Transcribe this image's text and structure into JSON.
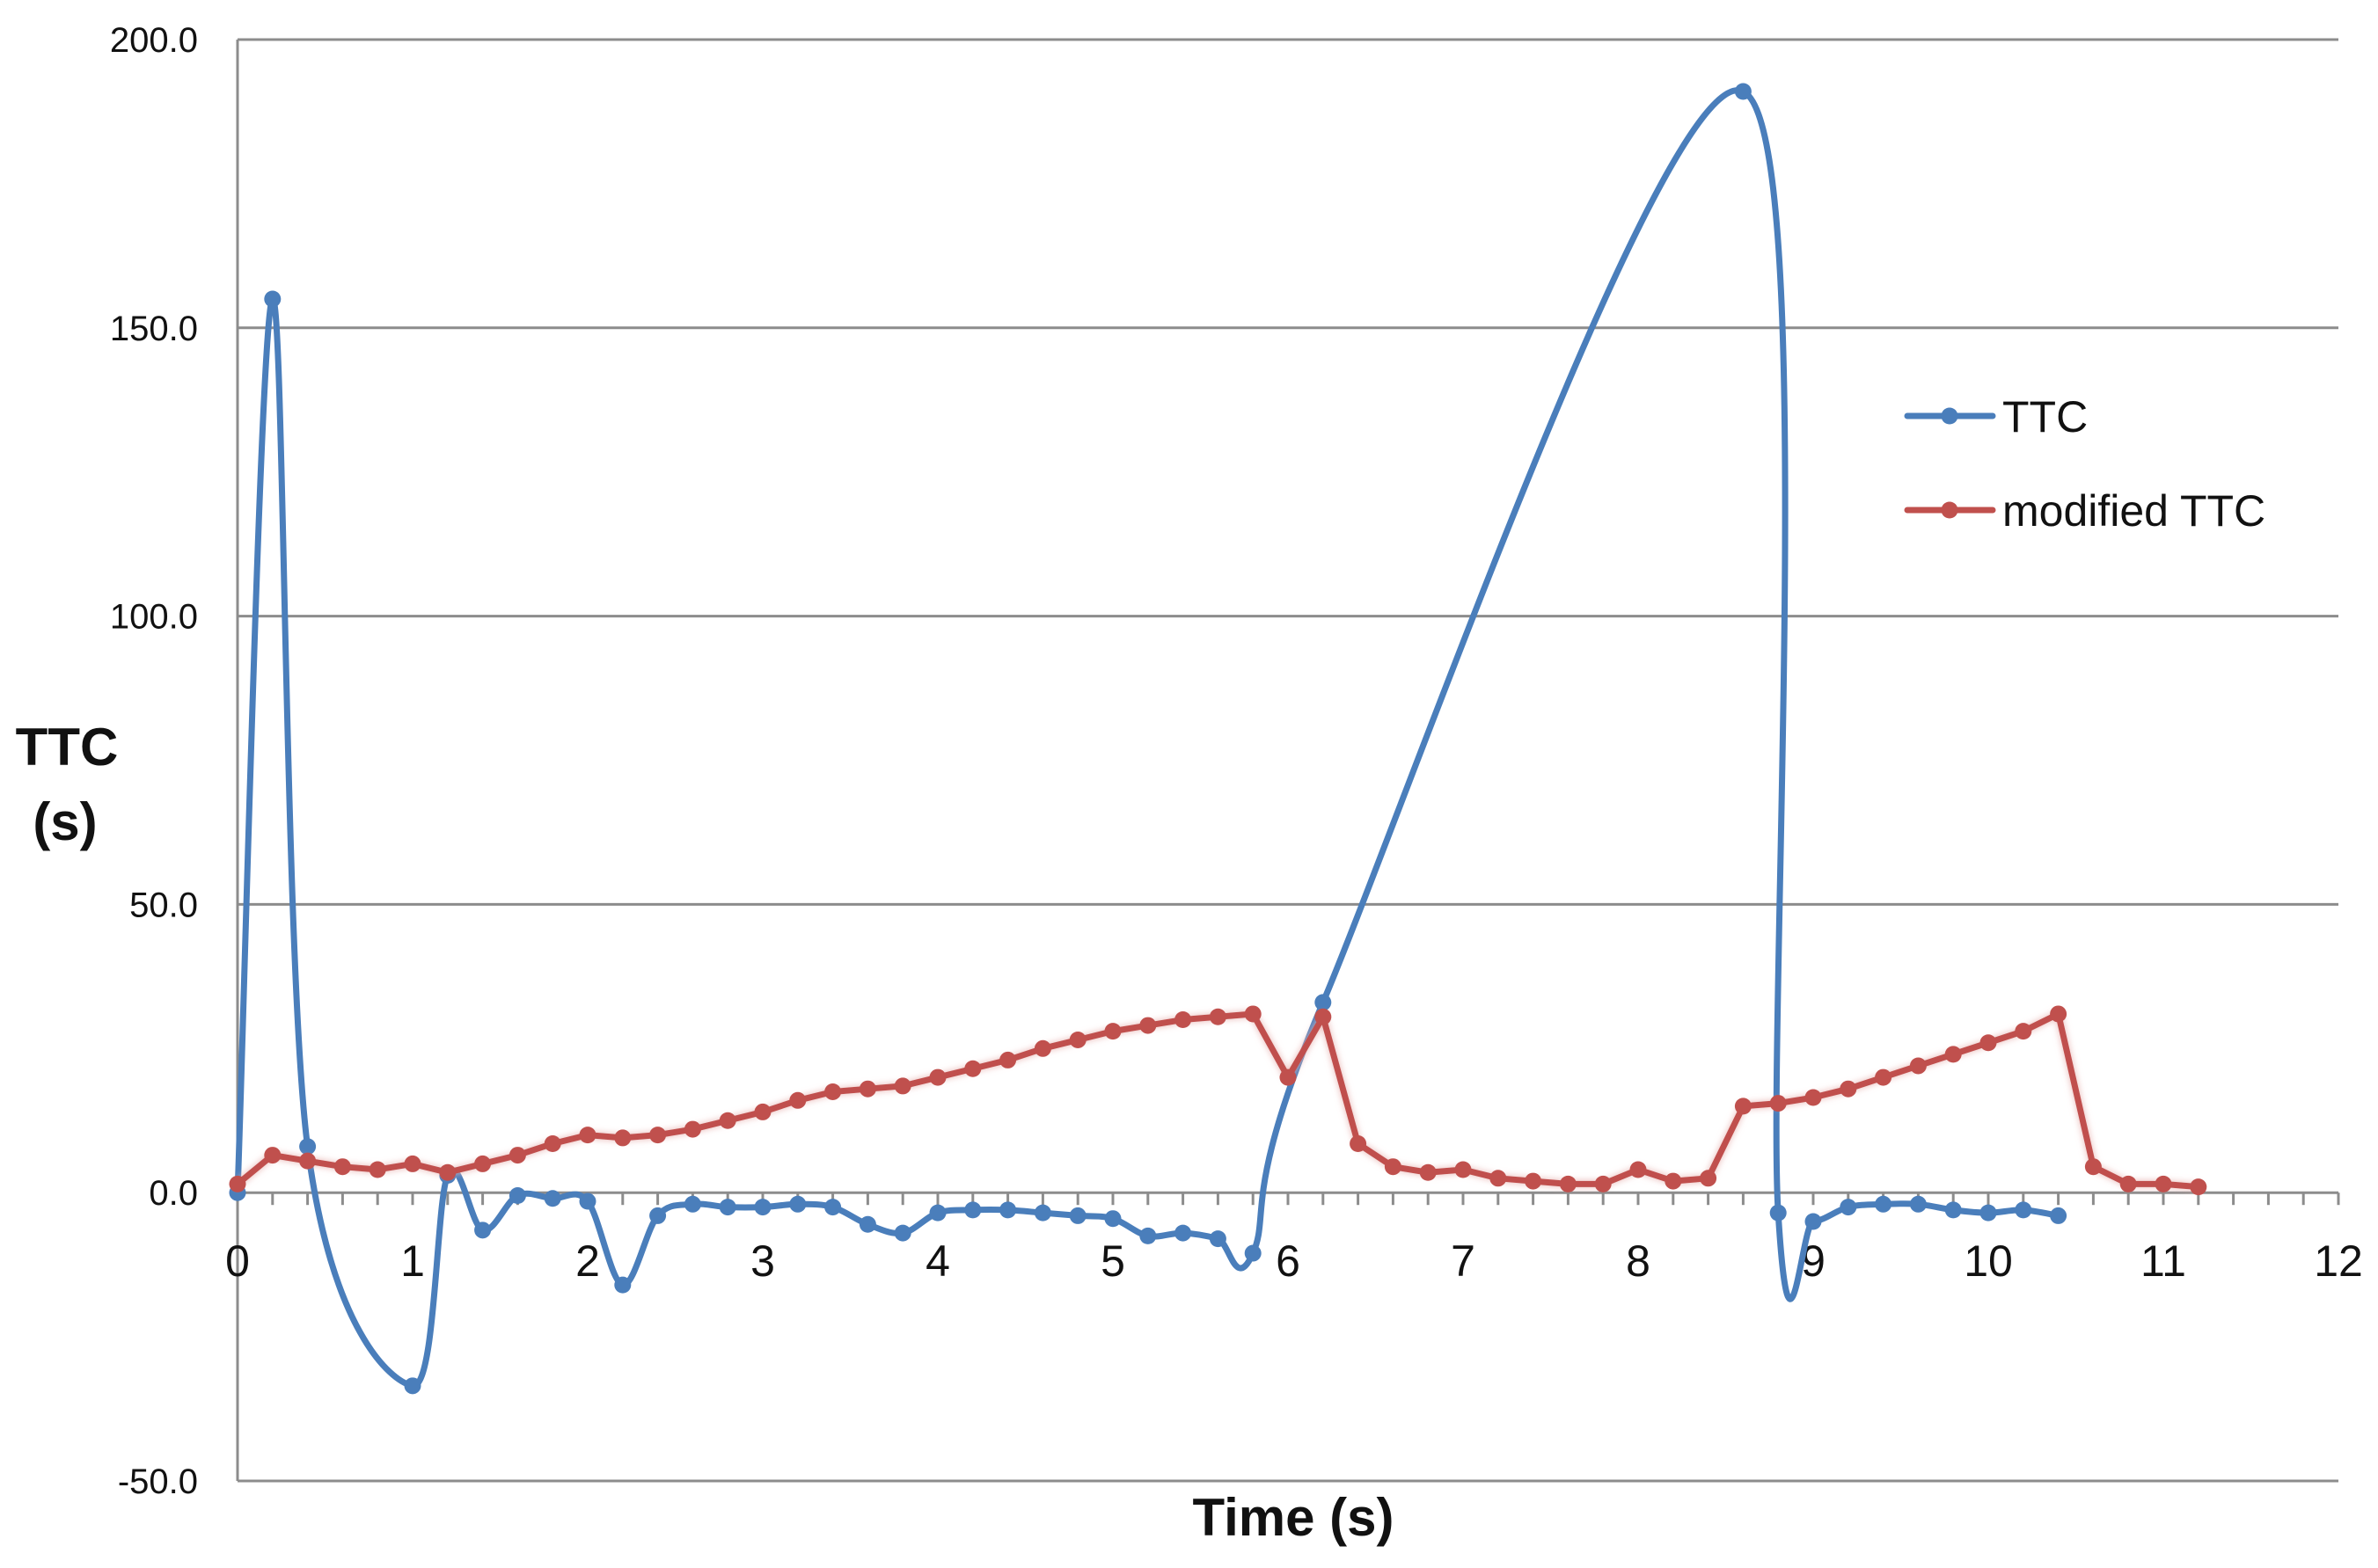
{
  "chart_data": {
    "type": "line",
    "title": "",
    "xlabel": "Time (s)",
    "ylabel": [
      "TTC",
      "(s)"
    ],
    "xlim": [
      0,
      12
    ],
    "ylim": [
      -50,
      200
    ],
    "x_ticks": [
      "0",
      "1",
      "2",
      "3",
      "4",
      "5",
      "6",
      "7",
      "8",
      "9",
      "10",
      "11",
      "12"
    ],
    "y_ticks": [
      "-50.0",
      "0.0",
      "50.0",
      "100.0",
      "150.0",
      "200.0"
    ],
    "grid": "horizontal",
    "legend_position": "right",
    "series": [
      {
        "name": "TTC",
        "color": "#4a7ebb",
        "smooth": true,
        "x": [
          0,
          0.2,
          0.4,
          1.0,
          1.2,
          1.4,
          1.6,
          1.8,
          2.0,
          2.2,
          2.4,
          2.6,
          2.8,
          3.0,
          3.2,
          3.4,
          3.6,
          3.8,
          4.0,
          4.2,
          4.4,
          4.6,
          4.8,
          5.0,
          5.2,
          5.4,
          5.6,
          5.8,
          6.2,
          8.6,
          8.8,
          9.0,
          9.2,
          9.4,
          9.6,
          9.8,
          10.0,
          10.2,
          10.4
        ],
        "y": [
          0,
          155,
          8,
          -33.5,
          3,
          -6.5,
          -0.5,
          -1,
          -1.5,
          -16,
          -4,
          -2,
          -2.5,
          -2.5,
          -2,
          -2.5,
          -5.5,
          -7,
          -3.5,
          -3,
          -3,
          -3.5,
          -4,
          -4.5,
          -7.5,
          -7,
          -8,
          -10.5,
          33,
          191,
          -3.5,
          -5,
          -2.5,
          -2,
          -2,
          -3,
          -3.5,
          -3,
          -4
        ]
      },
      {
        "name": "modified TTC",
        "color": "#c0504d",
        "smooth": false,
        "x": [
          0,
          0.2,
          0.4,
          0.6,
          0.8,
          1.0,
          1.2,
          1.4,
          1.6,
          1.8,
          2.0,
          2.2,
          2.4,
          2.6,
          2.8,
          3.0,
          3.2,
          3.4,
          3.6,
          3.8,
          4.0,
          4.2,
          4.4,
          4.6,
          4.8,
          5.0,
          5.2,
          5.4,
          5.6,
          5.8,
          6.0,
          6.2,
          6.4,
          6.6,
          6.8,
          7.0,
          7.2,
          7.4,
          7.6,
          7.8,
          8.0,
          8.2,
          8.4,
          8.6,
          8.8,
          9.0,
          9.2,
          9.4,
          9.6,
          9.8,
          10.0,
          10.2,
          10.4,
          10.6,
          10.8,
          11.0,
          11.2
        ],
        "y": [
          1.5,
          6.5,
          5.5,
          4.5,
          4,
          5,
          3.5,
          5,
          6.5,
          8.5,
          10,
          9.5,
          10,
          11,
          12.5,
          14,
          16,
          17.5,
          18,
          18.5,
          20,
          21.5,
          23,
          25,
          26.5,
          28,
          29,
          30,
          30.5,
          31,
          20,
          30.5,
          8.5,
          4.5,
          3.5,
          4,
          2.5,
          2,
          1.5,
          1.5,
          4,
          2,
          2.5,
          15,
          15.5,
          16.5,
          18,
          20,
          22,
          24,
          26,
          28,
          31,
          4.5,
          1.5,
          1.5,
          1
        ]
      }
    ]
  }
}
